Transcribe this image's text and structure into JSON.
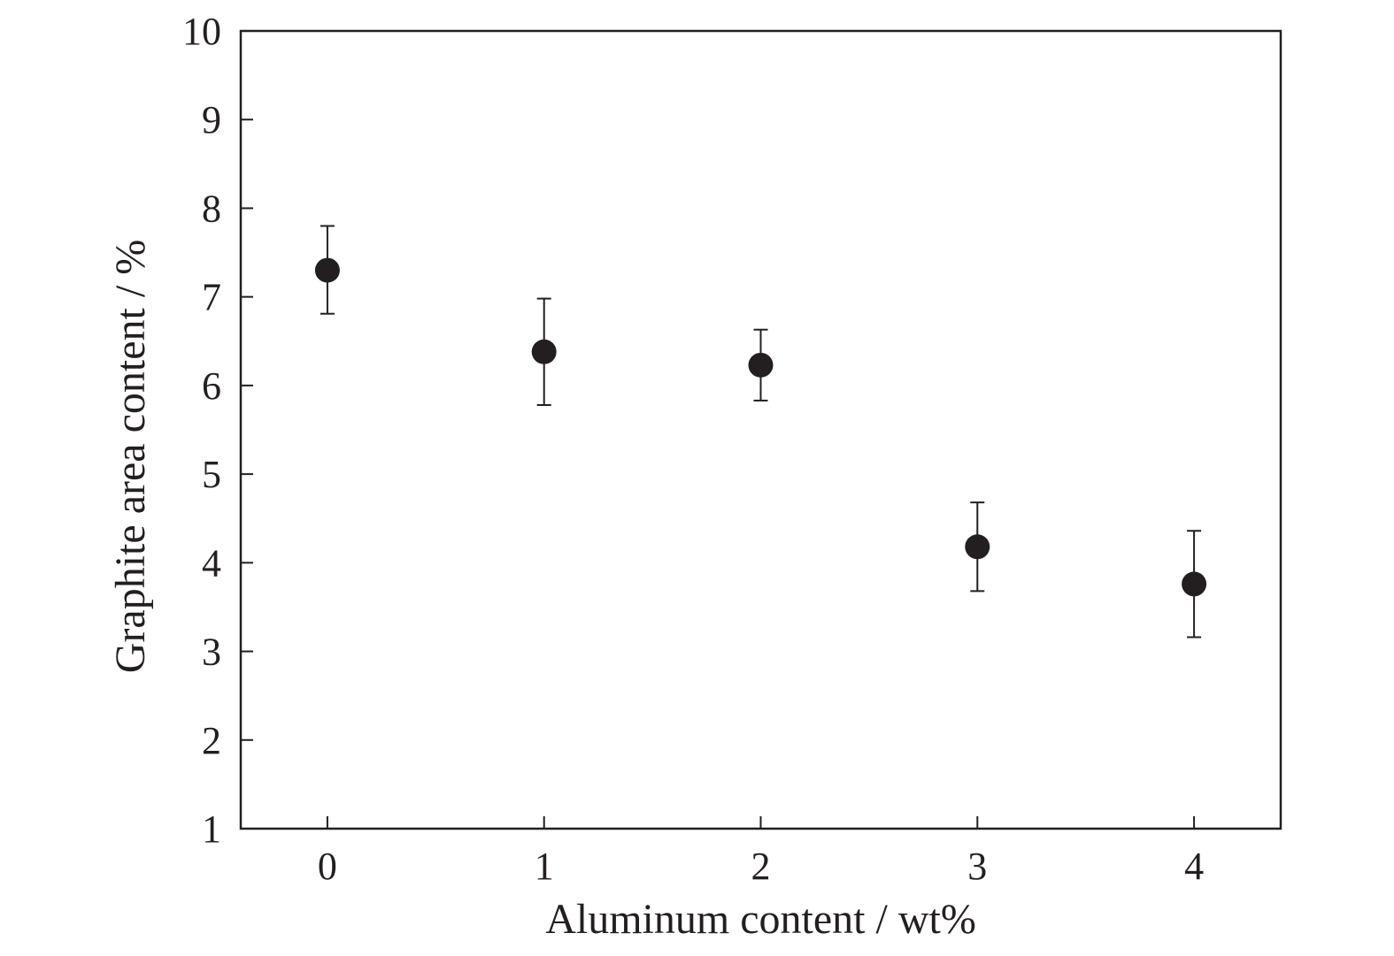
{
  "chart_data": {
    "type": "scatter",
    "xlabel": "Aluminum content / wt%",
    "ylabel": "Graphite area content / %",
    "xlim": [
      -0.4,
      4.4
    ],
    "ylim": [
      1,
      10
    ],
    "xticks": [
      0,
      1,
      2,
      3,
      4
    ],
    "yticks": [
      1,
      2,
      3,
      4,
      5,
      6,
      7,
      8,
      9,
      10
    ],
    "grid": false,
    "legend": "none",
    "series": [
      {
        "x": [
          0,
          1,
          2,
          3,
          4
        ],
        "y": [
          7.3,
          6.38,
          6.23,
          4.18,
          3.76
        ],
        "error_low": [
          6.81,
          5.78,
          5.83,
          3.68,
          3.16
        ],
        "error_high": [
          7.8,
          6.98,
          6.63,
          4.68,
          4.36
        ]
      }
    ],
    "colors": {
      "marker": "#231f20",
      "axis": "#231f20"
    }
  }
}
